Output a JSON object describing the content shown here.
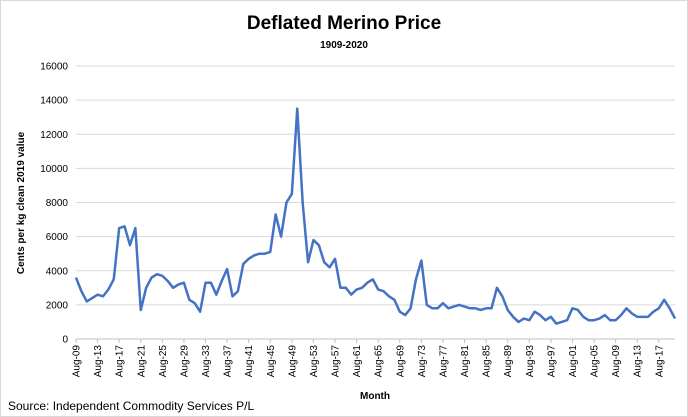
{
  "chart_data": {
    "type": "line",
    "title": "Deflated Merino Price",
    "subtitle": "1909-2020",
    "x_label": "Month",
    "y_label": "Cents per kg clean  2019 value",
    "source": "Source: Independent Commodity Services P/L",
    "categories": [
      "Aug-09",
      null,
      null,
      null,
      "Aug-13",
      null,
      null,
      null,
      "Aug-17",
      null,
      null,
      null,
      "Aug-21",
      null,
      null,
      null,
      "Aug-25",
      null,
      null,
      null,
      "Aug-29",
      null,
      null,
      null,
      "Aug-33",
      null,
      null,
      null,
      "Aug-37",
      null,
      null,
      null,
      "Aug-41",
      null,
      null,
      null,
      "Aug-45",
      null,
      null,
      null,
      "Aug-49",
      null,
      null,
      null,
      "Aug-53",
      null,
      null,
      null,
      "Aug-57",
      null,
      null,
      null,
      "Aug-61",
      null,
      null,
      null,
      "Aug-65",
      null,
      null,
      null,
      "Aug-69",
      null,
      null,
      null,
      "Aug-73",
      null,
      null,
      null,
      "Aug-77",
      null,
      null,
      null,
      "Aug-81",
      null,
      null,
      null,
      "Aug-85",
      null,
      null,
      null,
      "Aug-89",
      null,
      null,
      null,
      "Aug-93",
      null,
      null,
      null,
      "Aug-97",
      null,
      null,
      null,
      "Aug-01",
      null,
      null,
      null,
      "Aug-05",
      null,
      null,
      null,
      "Aug-09",
      null,
      null,
      null,
      "Aug-13",
      null,
      null,
      null,
      "Aug-17",
      null,
      null,
      null
    ],
    "values": [
      3600,
      2800,
      2200,
      2400,
      2600,
      2500,
      2900,
      3500,
      6500,
      6600,
      5500,
      6500,
      1700,
      3000,
      3600,
      3800,
      3700,
      3400,
      3000,
      3200,
      3300,
      2300,
      2100,
      1600,
      3300,
      3300,
      2600,
      3400,
      4100,
      2500,
      2800,
      4400,
      4700,
      4900,
      5000,
      5000,
      5100,
      7300,
      6000,
      8000,
      8500,
      13500,
      8000,
      4500,
      5800,
      5500,
      4500,
      4200,
      4700,
      3000,
      3000,
      2600,
      2900,
      3000,
      3300,
      3500,
      2900,
      2800,
      2500,
      2300,
      1600,
      1400,
      1800,
      3500,
      4600,
      2000,
      1800,
      1800,
      2100,
      1800,
      1900,
      2000,
      1900,
      1800,
      1800,
      1700,
      1800,
      1800,
      3000,
      2500,
      1700,
      1300,
      1000,
      1200,
      1100,
      1600,
      1400,
      1100,
      1300,
      900,
      1000,
      1100,
      1800,
      1700,
      1300,
      1100,
      1100,
      1200,
      1400,
      1100,
      1100,
      1400,
      1800,
      1500,
      1300,
      1300,
      1300,
      1600,
      1800,
      2300,
      1800,
      1200
    ],
    "color": "#4472c4",
    "ylim": [
      0,
      16000
    ],
    "yticks": [
      0,
      2000,
      4000,
      6000,
      8000,
      10000,
      12000,
      14000,
      16000
    ],
    "grid": true
  }
}
